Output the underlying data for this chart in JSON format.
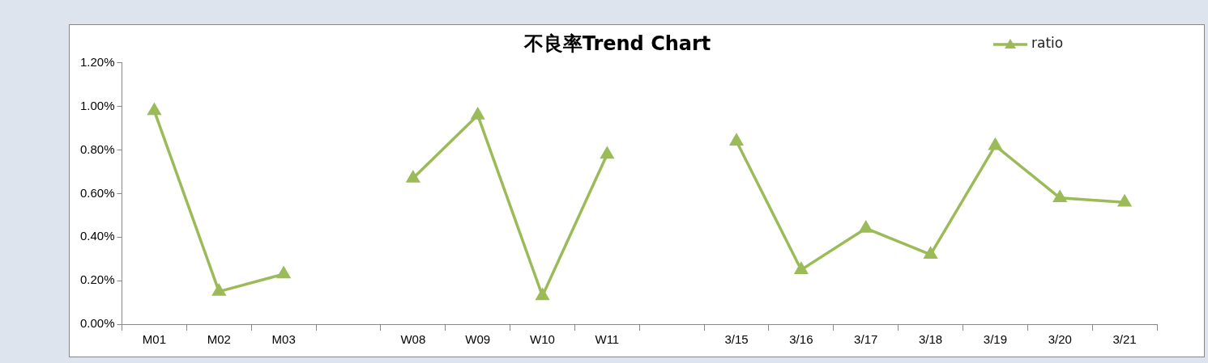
{
  "chart_data": {
    "type": "line",
    "title": "不良率Trend Chart",
    "categories": [
      "M01",
      "M02",
      "M03",
      null,
      "W08",
      "W09",
      "W10",
      "W11",
      null,
      "3/15",
      "3/16",
      "3/17",
      "3/18",
      "3/19",
      "3/20",
      "3/21"
    ],
    "series": [
      {
        "name": "ratio",
        "color": "#9bbb59",
        "values": [
          0.98,
          0.15,
          0.23,
          null,
          0.67,
          0.96,
          0.13,
          0.78,
          null,
          0.84,
          0.25,
          0.44,
          0.32,
          0.82,
          0.58,
          0.56
        ]
      }
    ],
    "ylim": [
      0,
      1.2
    ],
    "yticks": [
      {
        "value": 0,
        "label": "0.00%"
      },
      {
        "value": 0.2,
        "label": "0.20%"
      },
      {
        "value": 0.4,
        "label": "0.40%"
      },
      {
        "value": 0.6,
        "label": "0.60%"
      },
      {
        "value": 0.8,
        "label": "0.80%"
      },
      {
        "value": 1.0,
        "label": "1.00%"
      },
      {
        "value": 1.2,
        "label": "1.20%"
      }
    ],
    "grid": false,
    "legend": "top right",
    "marker": "triangle",
    "line_style": "solid"
  }
}
